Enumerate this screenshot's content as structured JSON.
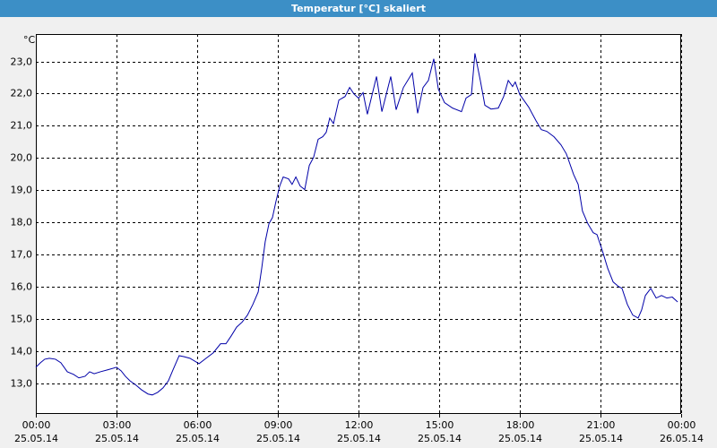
{
  "chart_data": {
    "type": "line",
    "title": "Temperatur [°C] skaliert",
    "ylabel": "°C",
    "x": [
      0,
      0.17,
      0.33,
      0.5,
      0.73,
      0.93,
      1.17,
      1.4,
      1.6,
      1.83,
      2,
      2.17,
      2.4,
      2.67,
      3,
      3.17,
      3.33,
      3.5,
      3.73,
      3.93,
      4.17,
      4.33,
      4.53,
      4.73,
      4.93,
      5.1,
      5.33,
      5.5,
      5.73,
      6.07,
      6.33,
      6.6,
      6.87,
      7.07,
      7.27,
      7.47,
      7.67,
      7.87,
      8.07,
      8.27,
      8.4,
      8.53,
      8.67,
      8.8,
      8.93,
      9.07,
      9.2,
      9.4,
      9.53,
      9.67,
      9.83,
      10,
      10.17,
      10.33,
      10.5,
      10.67,
      10.8,
      10.93,
      11.07,
      11.27,
      11.5,
      11.67,
      11.83,
      12,
      12.17,
      12.33,
      12.67,
      12.87,
      13.2,
      13.4,
      13.67,
      14,
      14.2,
      14.4,
      14.6,
      14.8,
      14.97,
      15.2,
      15.5,
      15.83,
      16,
      16.2,
      16.33,
      16.53,
      16.7,
      16.93,
      17.2,
      17.4,
      17.57,
      17.73,
      17.83,
      18,
      18.33,
      18.6,
      18.8,
      19,
      19.27,
      19.53,
      19.73,
      20,
      20.17,
      20.33,
      20.53,
      20.73,
      20.87,
      21.07,
      21.27,
      21.47,
      21.67,
      21.8,
      22,
      22.2,
      22.4,
      22.53,
      22.67,
      22.87,
      23.07,
      23.27,
      23.47,
      23.67,
      23.87
    ],
    "series": [
      {
        "name": "Temperatur",
        "color": "#0000a8",
        "values": [
          13.5,
          13.64,
          13.75,
          13.78,
          13.75,
          13.64,
          13.36,
          13.28,
          13.17,
          13.22,
          13.36,
          13.3,
          13.36,
          13.42,
          13.5,
          13.39,
          13.22,
          13.08,
          12.94,
          12.8,
          12.67,
          12.64,
          12.72,
          12.86,
          13.08,
          13.42,
          13.86,
          13.83,
          13.78,
          13.61,
          13.78,
          13.95,
          14.23,
          14.23,
          14.48,
          14.75,
          14.9,
          15.12,
          15.45,
          15.84,
          16.57,
          17.4,
          17.96,
          18.15,
          18.65,
          19.13,
          19.41,
          19.35,
          19.18,
          19.41,
          19.13,
          19.02,
          19.77,
          20.02,
          20.58,
          20.66,
          20.8,
          21.24,
          21.07,
          21.8,
          21.91,
          22.19,
          21.99,
          21.86,
          22.03,
          21.36,
          22.53,
          21.44,
          22.53,
          21.5,
          22.19,
          22.64,
          21.39,
          22.19,
          22.41,
          23.08,
          22.14,
          21.72,
          21.55,
          21.44,
          21.86,
          21.97,
          23.25,
          22.41,
          21.64,
          21.52,
          21.55,
          21.91,
          22.41,
          22.22,
          22.36,
          21.97,
          21.58,
          21.16,
          20.88,
          20.83,
          20.66,
          20.41,
          20.13,
          19.49,
          19.18,
          18.35,
          17.96,
          17.68,
          17.62,
          17.12,
          16.57,
          16.15,
          16.01,
          15.95,
          15.45,
          15.12,
          15.03,
          15.28,
          15.73,
          15.95,
          15.65,
          15.73,
          15.65,
          15.68,
          15.53
        ]
      }
    ],
    "xlim": [
      0,
      24
    ],
    "xticks": [
      {
        "value": 0,
        "label": [
          "00:00",
          "25.05.14"
        ]
      },
      {
        "value": 3,
        "label": [
          "03:00",
          "25.05.14"
        ]
      },
      {
        "value": 6,
        "label": [
          "06:00",
          "25.05.14"
        ]
      },
      {
        "value": 9,
        "label": [
          "09:00",
          "25.05.14"
        ]
      },
      {
        "value": 12,
        "label": [
          "12:00",
          "25.05.14"
        ]
      },
      {
        "value": 15,
        "label": [
          "15:00",
          "25.05.14"
        ]
      },
      {
        "value": 18,
        "label": [
          "18:00",
          "25.05.14"
        ]
      },
      {
        "value": 21,
        "label": [
          "21:00",
          "25.05.14"
        ]
      },
      {
        "value": 24,
        "label": [
          "00:00",
          "26.05.14"
        ]
      }
    ],
    "ylim": [
      12.05,
      23.85
    ],
    "yticks": [
      {
        "value": 13,
        "label": "13,0"
      },
      {
        "value": 14,
        "label": "14,0"
      },
      {
        "value": 15,
        "label": "15,0"
      },
      {
        "value": 16,
        "label": "16,0"
      },
      {
        "value": 17,
        "label": "17,0"
      },
      {
        "value": 18,
        "label": "18,0"
      },
      {
        "value": 19,
        "label": "19,0"
      },
      {
        "value": 20,
        "label": "20,0"
      },
      {
        "value": 21,
        "label": "21,0"
      },
      {
        "value": 22,
        "label": "22,0"
      },
      {
        "value": 23,
        "label": "23,0"
      }
    ],
    "grid": true
  }
}
